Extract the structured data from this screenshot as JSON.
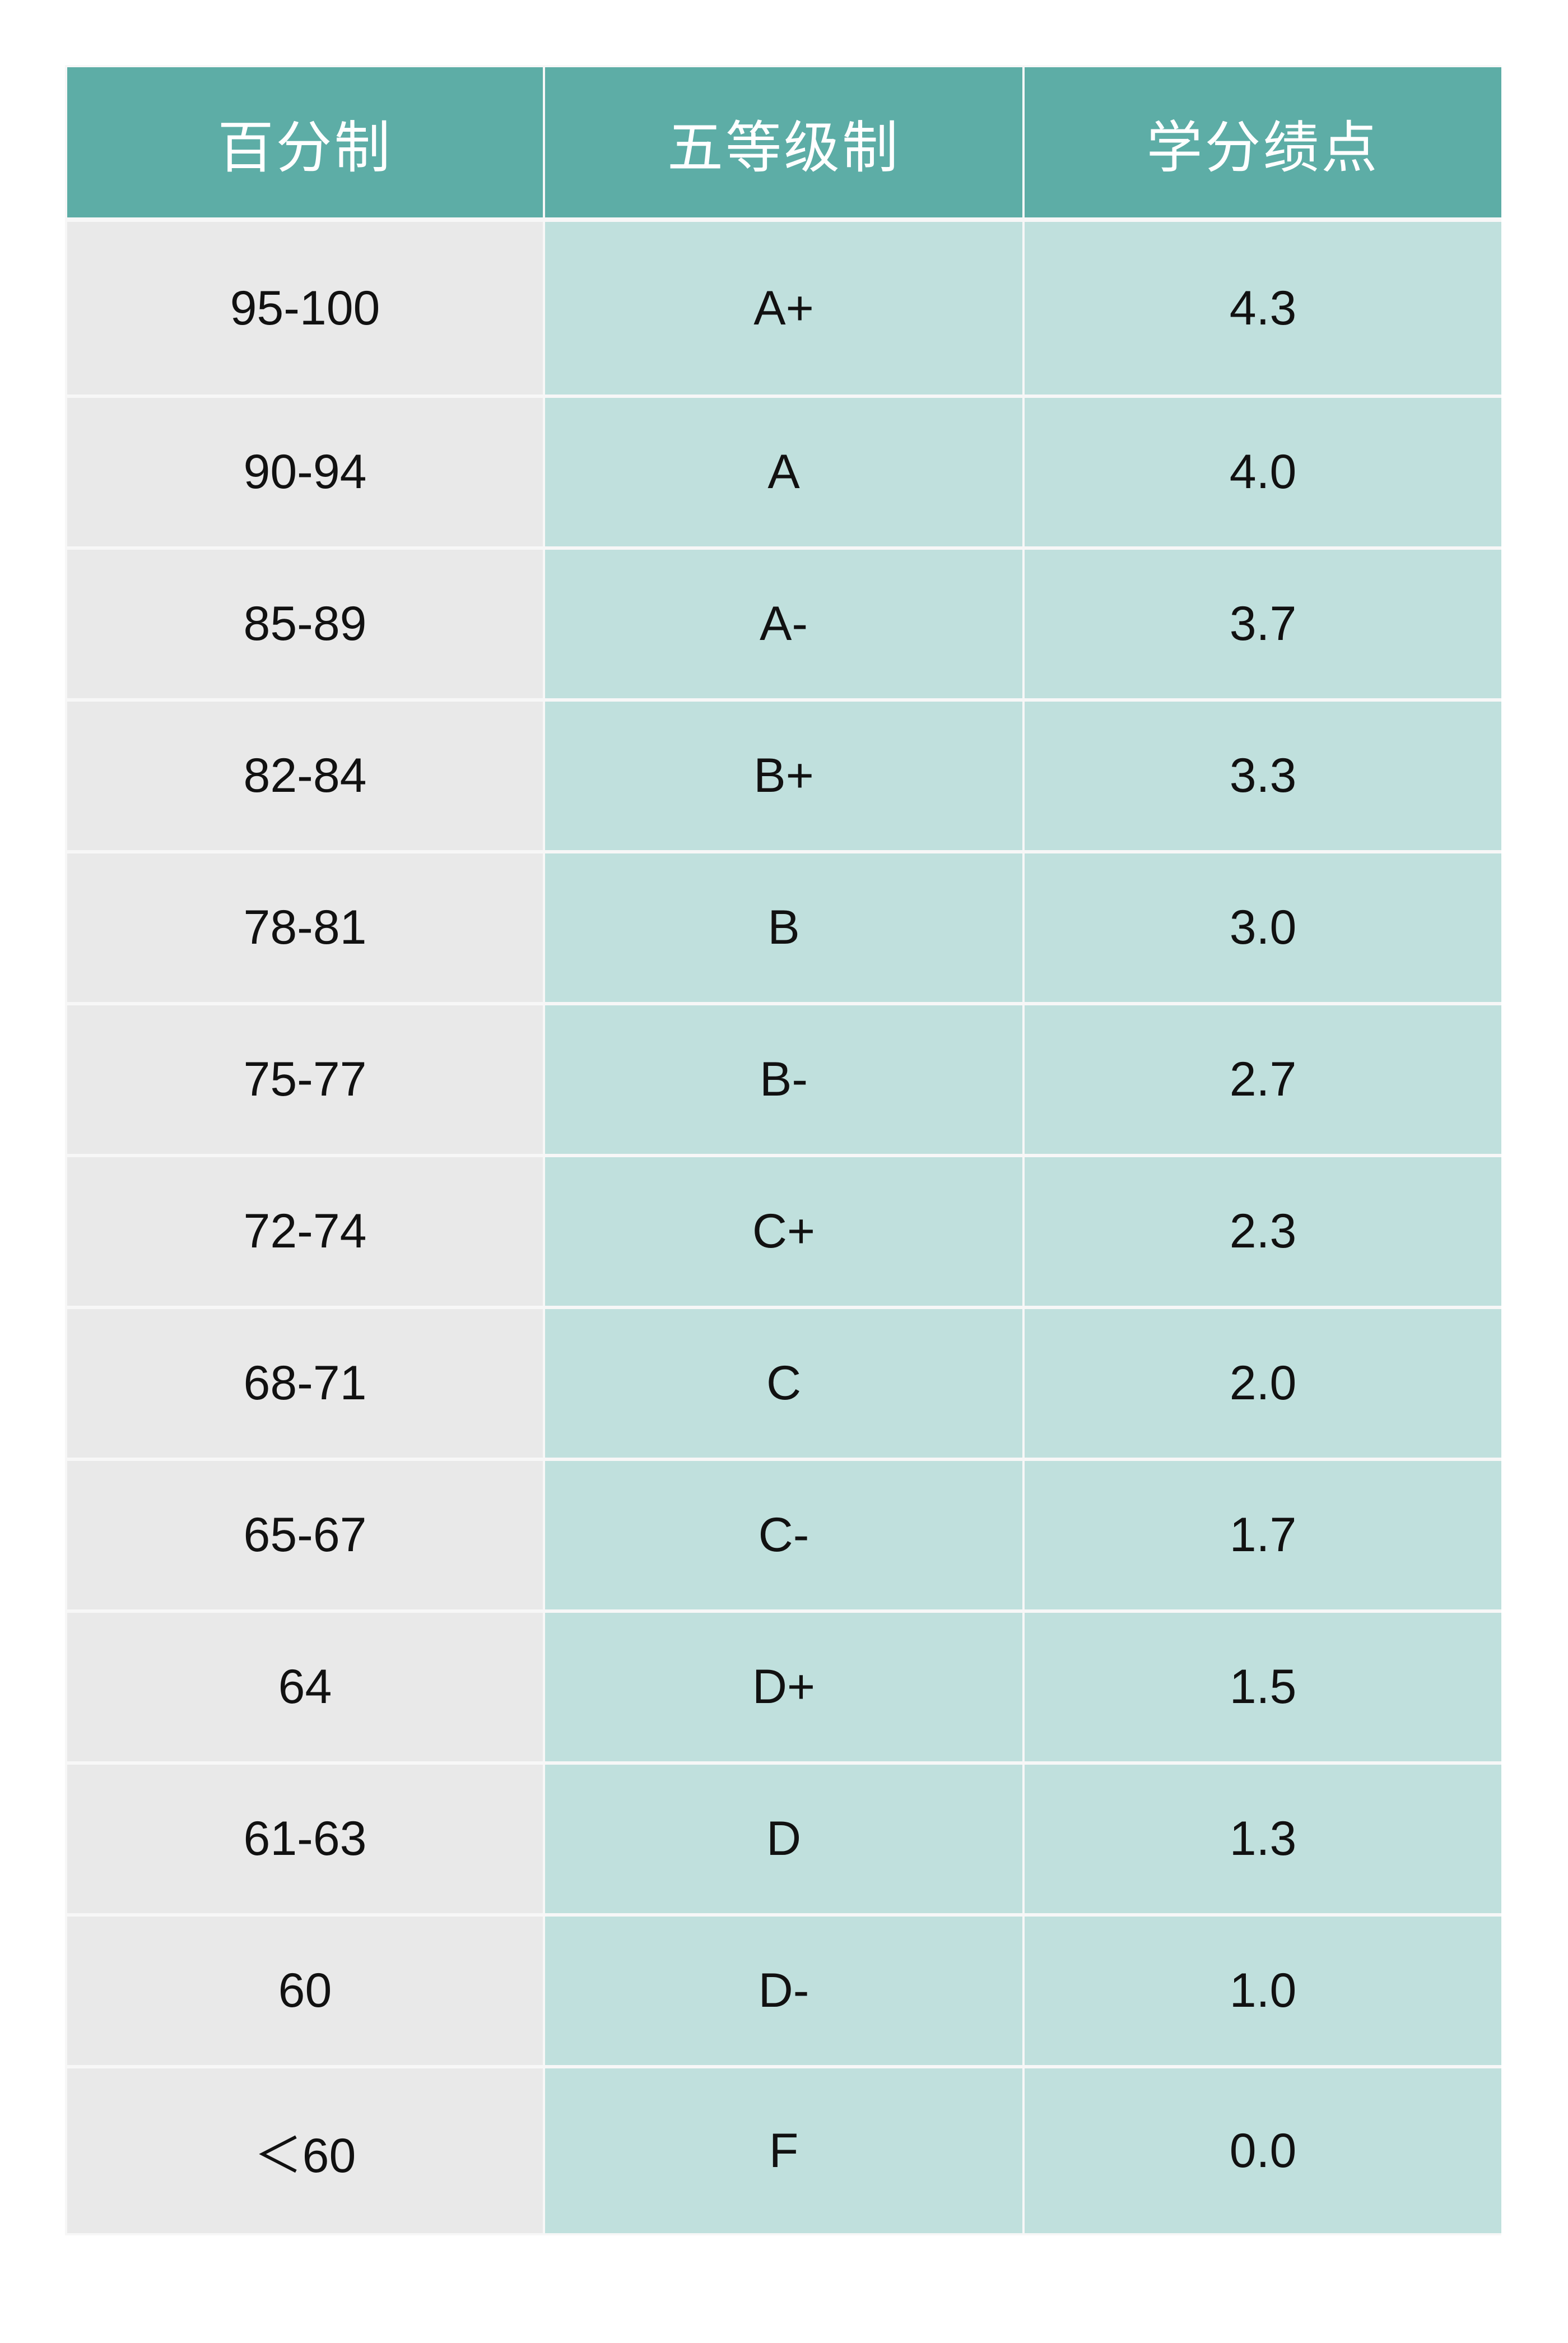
{
  "table": {
    "headers": [
      "百分制",
      "五等级制",
      "学分绩点"
    ],
    "rows": [
      [
        "95-100",
        "A+",
        "4.3"
      ],
      [
        "90-94",
        "A",
        "4.0"
      ],
      [
        "85-89",
        "A-",
        "3.7"
      ],
      [
        "82-84",
        "B+",
        "3.3"
      ],
      [
        "78-81",
        "B",
        "3.0"
      ],
      [
        "75-77",
        "B-",
        "2.7"
      ],
      [
        "72-74",
        "C+",
        "2.3"
      ],
      [
        "68-71",
        "C",
        "2.0"
      ],
      [
        "65-67",
        "C-",
        "1.7"
      ],
      [
        "64",
        "D+",
        "1.5"
      ],
      [
        "61-63",
        "D",
        "1.3"
      ],
      [
        "60",
        "D-",
        "1.0"
      ],
      [
        "＜60",
        "F",
        "0.0"
      ]
    ]
  },
  "colors": {
    "header_bg": "#5dada6",
    "first_col_bg": "#e9e9e9",
    "other_col_bg": "#c0e0dd",
    "border": "#f7f7f7"
  }
}
